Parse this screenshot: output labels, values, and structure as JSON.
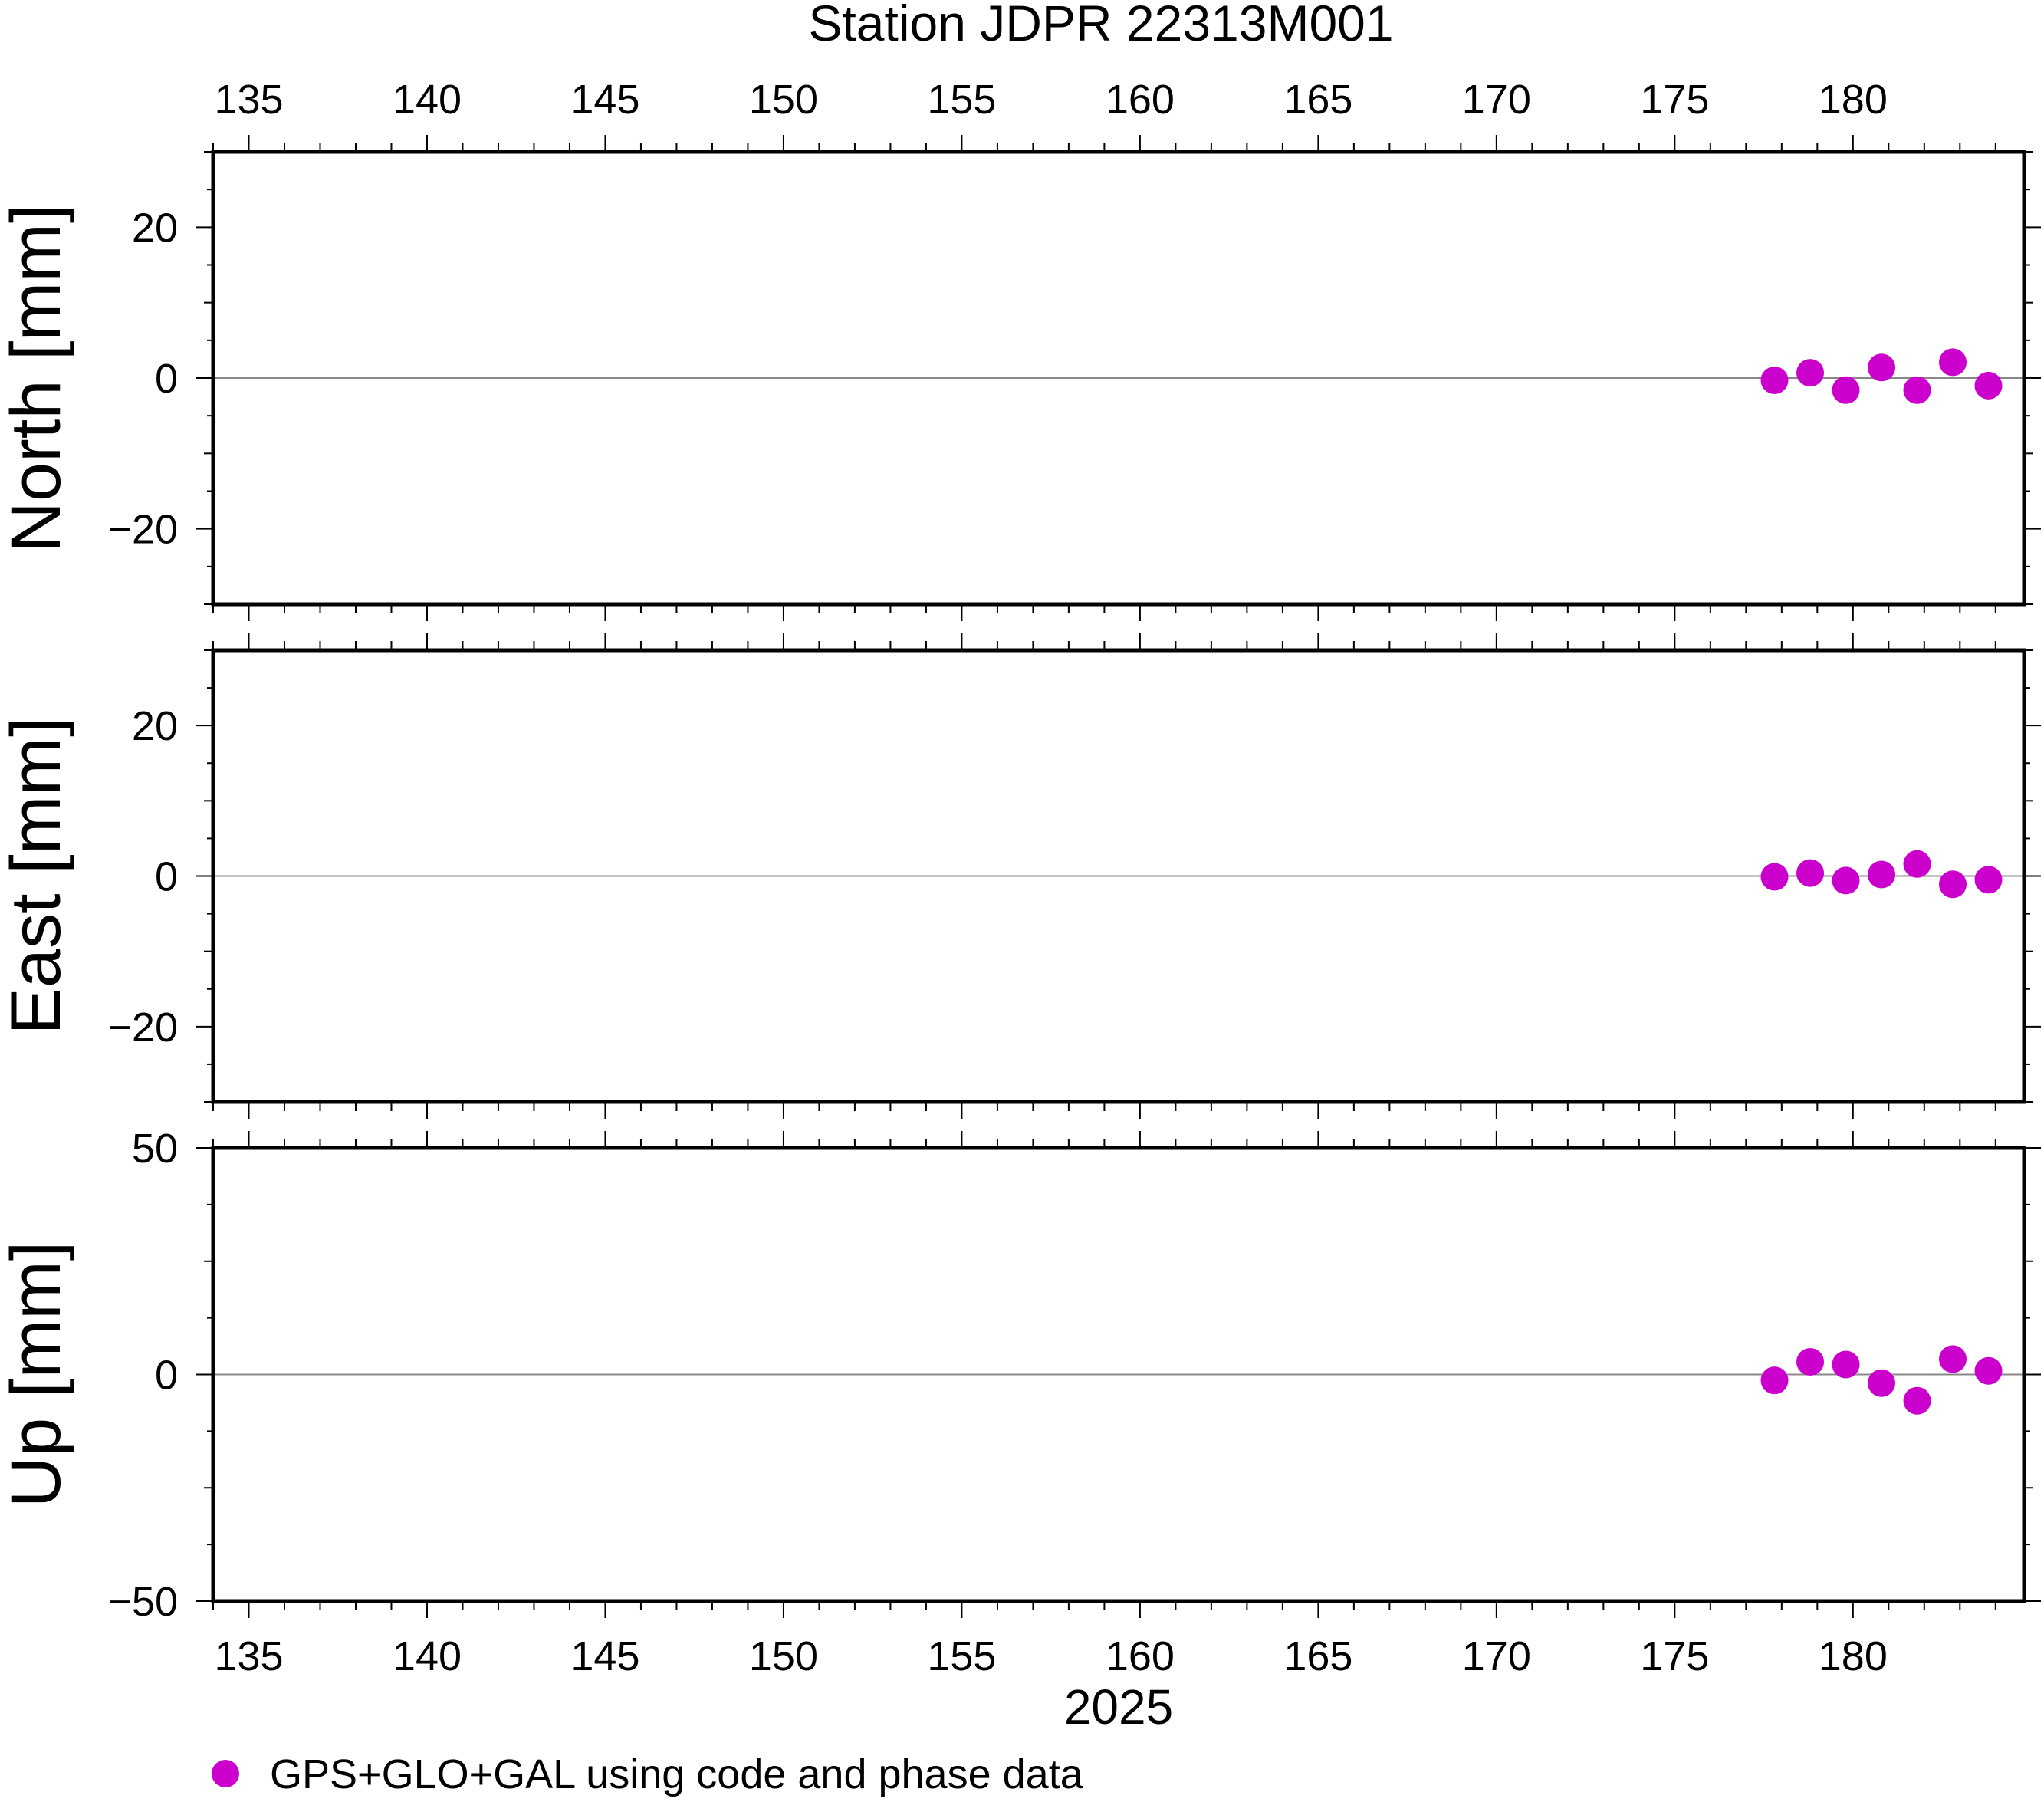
{
  "chart_data": {
    "type": "scatter",
    "title": "Station JDPR 22313M001",
    "xlabel": "2025",
    "xlim": [
      134,
      184.8
    ],
    "x_ticks": [
      135,
      140,
      145,
      150,
      155,
      160,
      165,
      170,
      175,
      180
    ],
    "x_tick_labels": [
      "135",
      "140",
      "145",
      "150",
      "155",
      "160",
      "165",
      "170",
      "175",
      "180"
    ],
    "marker_color": "#cc00cc",
    "zero_line": true,
    "grid": false,
    "legend": {
      "position": "bottom-left",
      "entries": [
        {
          "label": "GPS+GLO+GAL using code and phase data",
          "color": "#cc00cc",
          "marker": "circle"
        }
      ]
    },
    "panels": [
      {
        "ylabel": "North [mm]",
        "ylim": [
          -30,
          30
        ],
        "y_ticks": [
          -20,
          0,
          20
        ],
        "y_tick_labels": [
          "−20",
          "0",
          "20"
        ],
        "series": [
          {
            "x": [
              177.8,
              178.8,
              179.8,
              180.8,
              181.8,
              182.8,
              183.8
            ],
            "y": [
              -0.3,
              0.7,
              -1.6,
              1.4,
              -1.6,
              2.1,
              -1.0
            ]
          }
        ]
      },
      {
        "ylabel": "East [mm]",
        "ylim": [
          -30,
          30
        ],
        "y_ticks": [
          -20,
          0,
          20
        ],
        "y_tick_labels": [
          "−20",
          "0",
          "20"
        ],
        "series": [
          {
            "x": [
              177.8,
              178.8,
              179.8,
              180.8,
              181.8,
              182.8,
              183.8
            ],
            "y": [
              -0.1,
              0.4,
              -0.6,
              0.2,
              1.6,
              -1.1,
              -0.5
            ]
          }
        ]
      },
      {
        "ylabel": "Up [mm]",
        "ylim": [
          -50,
          50
        ],
        "y_ticks": [
          -50,
          0,
          50
        ],
        "y_tick_labels": [
          "−50",
          "0",
          "50"
        ],
        "series": [
          {
            "x": [
              177.8,
              178.8,
              179.8,
              180.8,
              181.8,
              182.8,
              183.8
            ],
            "y": [
              -1.3,
              2.8,
              2.2,
              -1.9,
              -5.8,
              3.4,
              0.8
            ]
          }
        ]
      }
    ]
  }
}
